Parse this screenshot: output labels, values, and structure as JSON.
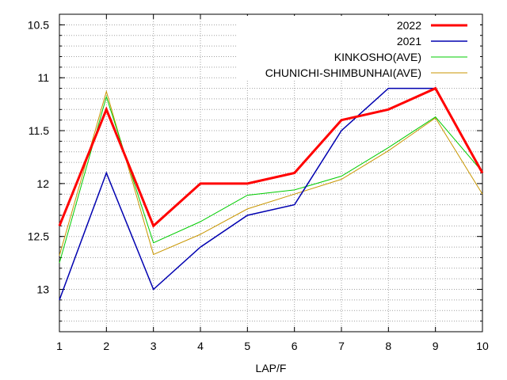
{
  "chart_data": {
    "type": "line",
    "xlabel": "LAP/F",
    "ylabel": "",
    "x": [
      1,
      2,
      3,
      4,
      5,
      6,
      7,
      8,
      9,
      10
    ],
    "xlim": [
      1,
      10
    ],
    "ylim": [
      10.4,
      13.4
    ],
    "y_inverted": true,
    "x_ticks": [
      "1",
      "2",
      "3",
      "4",
      "5",
      "6",
      "7",
      "8",
      "9",
      "10"
    ],
    "y_ticks": [
      {
        "value": 10.5,
        "label": "10.5"
      },
      {
        "value": 11,
        "label": "11"
      },
      {
        "value": 11.5,
        "label": "11.5"
      },
      {
        "value": 12,
        "label": "12"
      },
      {
        "value": 12.5,
        "label": "12.5"
      },
      {
        "value": 13,
        "label": "13"
      }
    ],
    "grid": true,
    "legend_position": "top-right",
    "series": [
      {
        "name": "2022",
        "color": "#ff0000",
        "values": [
          12.4,
          11.3,
          12.4,
          12.0,
          12.0,
          11.9,
          11.4,
          11.3,
          11.1,
          11.9
        ]
      },
      {
        "name": "2021",
        "color": "#0000b0",
        "values": [
          13.1,
          11.9,
          13.0,
          12.6,
          12.3,
          12.2,
          11.5,
          11.1,
          11.1,
          11.9
        ]
      },
      {
        "name": "KINKOSHO(AVE)",
        "color": "#00cc00",
        "values": [
          12.75,
          11.18,
          12.56,
          12.36,
          12.11,
          12.06,
          11.93,
          11.66,
          11.37,
          11.89
        ]
      },
      {
        "name": "CHUNICHI-SHIMBUNHAI(AVE)",
        "color": "#c89600",
        "values": [
          12.68,
          11.13,
          12.67,
          12.48,
          12.24,
          12.1,
          11.96,
          11.69,
          11.38,
          12.1
        ]
      }
    ]
  }
}
